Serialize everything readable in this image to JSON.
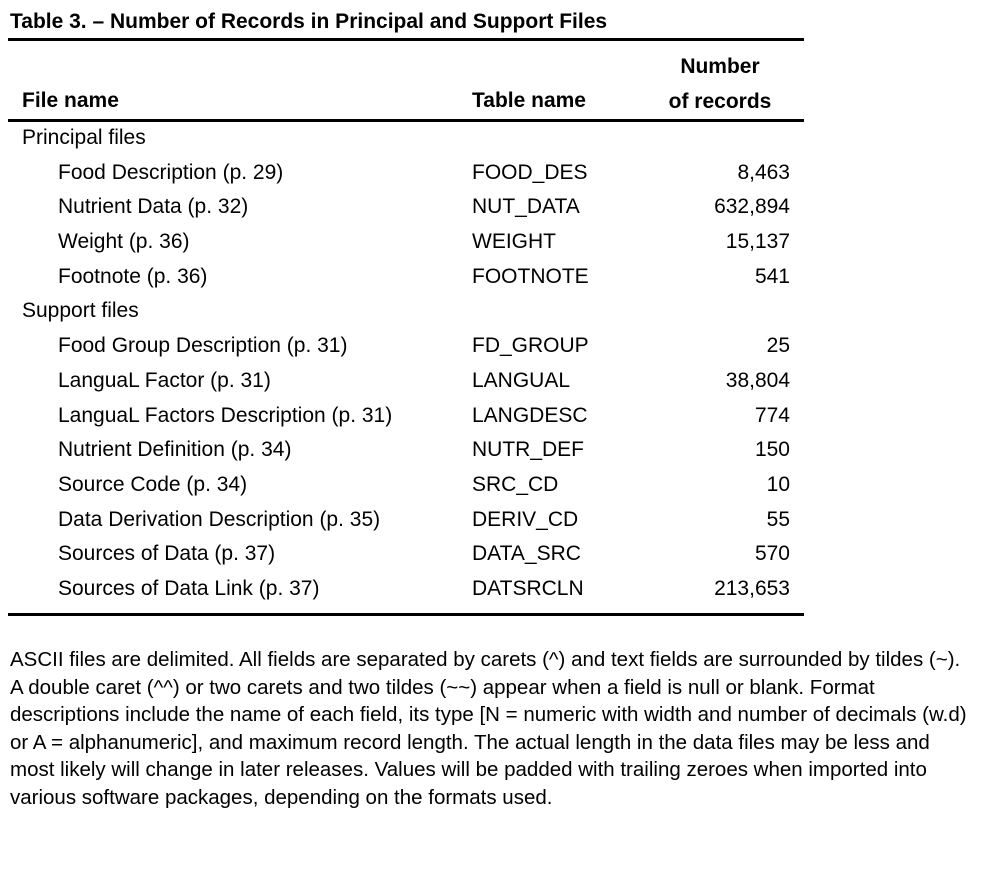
{
  "table": {
    "title": "Table 3. – Number of Records in Principal and Support Files",
    "headers": {
      "file_name": "File name",
      "table_name": "Table name",
      "num_records_line1": "Number",
      "num_records_line2": "of records"
    },
    "groups": [
      {
        "label": "Principal files",
        "rows": [
          {
            "file": "Food Description (p. 29)",
            "table": "FOOD_DES",
            "records": "8,463"
          },
          {
            "file": "Nutrient Data (p. 32)",
            "table": "NUT_DATA",
            "records": "632,894"
          },
          {
            "file": "Weight (p. 36)",
            "table": "WEIGHT",
            "records": "15,137"
          },
          {
            "file": "Footnote (p. 36)",
            "table": "FOOTNOTE",
            "records": "541"
          }
        ]
      },
      {
        "label": "Support files",
        "rows": [
          {
            "file": "Food Group Description (p. 31)",
            "table": "FD_GROUP",
            "records": "25"
          },
          {
            "file": "LanguaL Factor (p. 31)",
            "table": "LANGUAL",
            "records": "38,804"
          },
          {
            "file": "LanguaL Factors Description (p. 31)",
            "table": "LANGDESC",
            "records": "774"
          },
          {
            "file": "Nutrient Definition (p. 34)",
            "table": "NUTR_DEF",
            "records": "150"
          },
          {
            "file": "Source Code (p. 34)",
            "table": "SRC_CD",
            "records": "10"
          },
          {
            "file": "Data Derivation Description (p. 35)",
            "table": "DERIV_CD",
            "records": "55"
          },
          {
            "file": "Sources of Data (p. 37)",
            "table": "DATA_SRC",
            "records": "570"
          },
          {
            "file": "Sources of Data Link (p. 37)",
            "table": "DATSRCLN",
            "records": "213,653"
          }
        ]
      }
    ]
  },
  "note": "ASCII files are delimited. All fields are separated by carets (^) and text fields are surrounded by tildes (~). A double caret (^^) or two carets and two tildes (~~) appear when a field is null or blank. Format descriptions include the name of each field, its type [N = numeric with width and number of decimals (w.d) or A = alphanumeric], and maximum record length. The actual length in the data files may be less and most likely will change in later releases. Values will be padded with trailing zeroes when imported into various software packages, depending on the formats used."
}
